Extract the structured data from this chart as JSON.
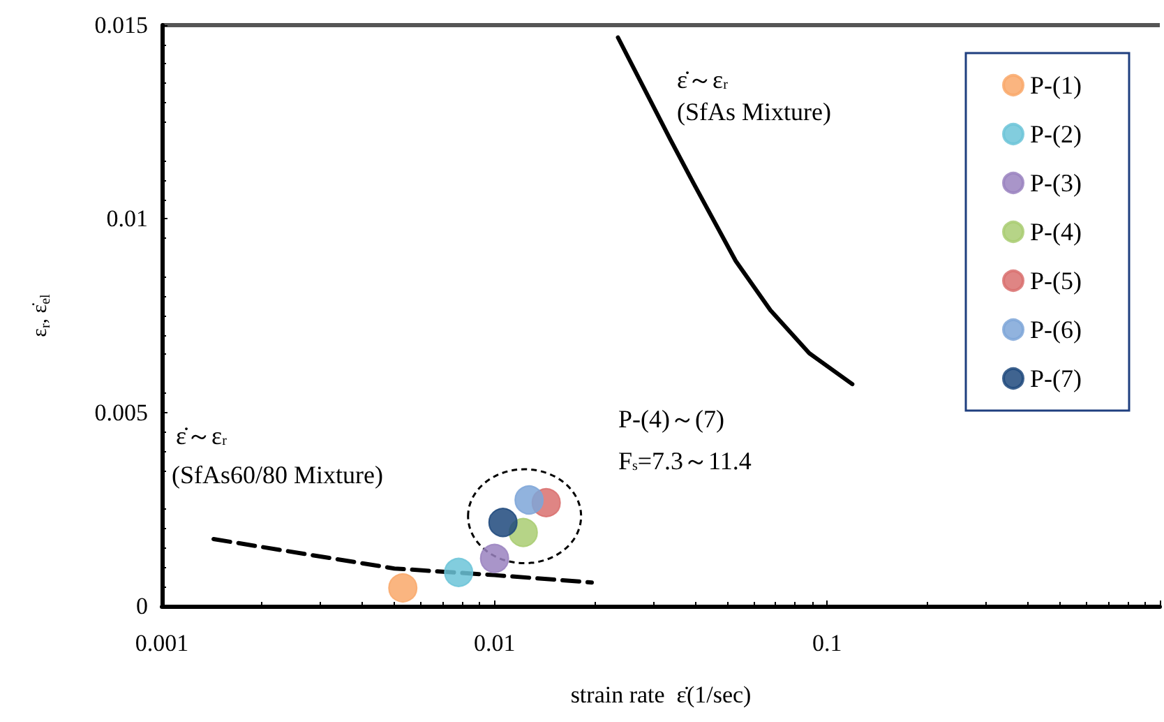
{
  "chart_data": {
    "type": "scatter",
    "xlabel": "strain rate  ε̇(1/sec)",
    "ylabel": "ε$_{r}$, ε̇$_{el}$",
    "log": "x",
    "grid": false,
    "legend": "top right",
    "marker": "circle",
    "xlim": [
      0.001,
      1
    ],
    "xticks": [
      0.001,
      0.01,
      0.1,
      {
        "value": 1,
        "label": null
      }
    ],
    "ylim": [
      0,
      0.015
    ],
    "yticks": [
      0,
      0.005,
      0.01,
      0.015
    ],
    "series": [
      {
        "name": "P-(1)",
        "color": "#f9a86a",
        "x": [
          0.0053
        ],
        "values": [
          0.00047
        ]
      },
      {
        "name": "P-(2)",
        "color": "#6cc4d8",
        "x": [
          0.0078
        ],
        "values": [
          0.00087
        ]
      },
      {
        "name": "P-(3)",
        "color": "#9a82c0",
        "x": [
          0.01
        ],
        "values": [
          0.00123
        ]
      },
      {
        "name": "P-(4)",
        "color": "#a9cc72",
        "x": [
          0.0122
        ],
        "values": [
          0.0019
        ]
      },
      {
        "name": "P-(5)",
        "color": "#d9706e",
        "x": [
          0.0143
        ],
        "values": [
          0.00267
        ]
      },
      {
        "name": "P-(6)",
        "color": "#7ea6d8",
        "x": [
          0.0127
        ],
        "values": [
          0.00274
        ]
      },
      {
        "name": "P-(7)",
        "color": "#1f497d",
        "x": [
          0.0106
        ],
        "values": [
          0.00216
        ]
      },
      {
        "type": "line",
        "color": "#000000",
        "line_style": "solid",
        "marker": "none",
        "x": [
          0.0235,
          0.0338,
          0.0398,
          0.0531,
          0.0675,
          0.0883,
          0.119
        ],
        "values": [
          0.01468,
          0.01204,
          0.01089,
          0.00891,
          0.00764,
          0.00653,
          0.00573
        ]
      },
      {
        "type": "line",
        "color": "#000000",
        "line_style": "dashed",
        "marker": "none",
        "x": [
          0.00143,
          0.005,
          0.01,
          0.0196
        ],
        "values": [
          0.00173,
          0.00097,
          0.0008,
          0.00061
        ]
      }
    ],
    "annotations": [
      "ε̇～ε$_{r}$",
      "(SfAs Mixture)",
      "ε̇～ε$_{r}$",
      "(SfAs60/80 Mixture)",
      "P-(4)～(7)",
      "F$_{s}$=7.3～11.4"
    ]
  }
}
